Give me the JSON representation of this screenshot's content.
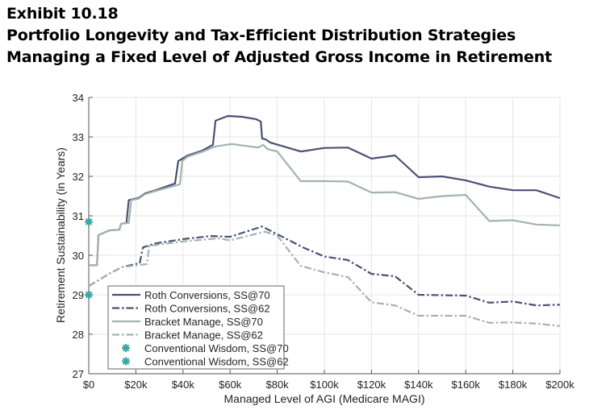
{
  "titles": {
    "exhibit": "Exhibit 10.18",
    "line1": "Portfolio Longevity and Tax-Efficient Distribution Strategies",
    "line2": "Managing a Fixed Level of Adjusted Gross Income in Retirement"
  },
  "chart_data": {
    "type": "line",
    "xlabel": "Managed Level of AGI (Medicare MAGI)",
    "ylabel": "Retirement Sustainability (in Years)",
    "xlim": [
      0,
      200
    ],
    "ylim": [
      27,
      34
    ],
    "x_units": "thousands of dollars",
    "x_ticks": [
      0,
      20,
      40,
      60,
      80,
      100,
      120,
      140,
      160,
      180,
      200
    ],
    "x_tick_labels": [
      "$0",
      "$20k",
      "$40k",
      "$60k",
      "$80k",
      "$100k",
      "$120k",
      "$140k",
      "$160k",
      "$180k",
      "$200k"
    ],
    "y_ticks": [
      27,
      28,
      29,
      30,
      31,
      32,
      33,
      34
    ],
    "y_tick_labels": [
      "27",
      "28",
      "29",
      "30",
      "31",
      "32",
      "33",
      "34"
    ],
    "grid": true,
    "legend_position": "bottom-left",
    "colors": {
      "dark": "#4a5173",
      "light": "#a3b3ad",
      "teal": "#3aa7a7"
    },
    "series": [
      {
        "name": "Roth Conversions, SS@70",
        "style": "solid",
        "color": "#4a5173",
        "points": [
          [
            0,
            29.75
          ],
          [
            3.5,
            29.75
          ],
          [
            4.1,
            30.51
          ],
          [
            8.6,
            30.63
          ],
          [
            13,
            30.65
          ],
          [
            13.7,
            30.8
          ],
          [
            16,
            30.82
          ],
          [
            17,
            31.4
          ],
          [
            21,
            31.45
          ],
          [
            24,
            31.57
          ],
          [
            28.4,
            31.65
          ],
          [
            36.6,
            31.82
          ],
          [
            38,
            32.39
          ],
          [
            42,
            32.53
          ],
          [
            48,
            32.65
          ],
          [
            52.7,
            32.8
          ],
          [
            53.8,
            33.41
          ],
          [
            59,
            33.53
          ],
          [
            65,
            33.51
          ],
          [
            71,
            33.45
          ],
          [
            73,
            33.39
          ],
          [
            73.6,
            32.96
          ],
          [
            75,
            32.94
          ],
          [
            77,
            32.86
          ],
          [
            90,
            32.63
          ],
          [
            100,
            32.72
          ],
          [
            110,
            32.73
          ],
          [
            120,
            32.45
          ],
          [
            130,
            32.53
          ],
          [
            140,
            31.98
          ],
          [
            150,
            32.0
          ],
          [
            160,
            31.9
          ],
          [
            170,
            31.74
          ],
          [
            180,
            31.65
          ],
          [
            190,
            31.65
          ],
          [
            200,
            31.45
          ]
        ]
      },
      {
        "name": "Roth Conversions, SS@62",
        "style": "dashdot",
        "color": "#4a5173",
        "points": [
          [
            0,
            29.22
          ],
          [
            8.6,
            29.53
          ],
          [
            14,
            29.7
          ],
          [
            21.6,
            29.8
          ],
          [
            23,
            30.2
          ],
          [
            28,
            30.3
          ],
          [
            40,
            30.41
          ],
          [
            52,
            30.49
          ],
          [
            60,
            30.47
          ],
          [
            73.6,
            30.73
          ],
          [
            91,
            30.2
          ],
          [
            100,
            29.97
          ],
          [
            110,
            29.88
          ],
          [
            120,
            29.53
          ],
          [
            130,
            29.47
          ],
          [
            140,
            29.0
          ],
          [
            160,
            28.98
          ],
          [
            170,
            28.8
          ],
          [
            180,
            28.83
          ],
          [
            190,
            28.73
          ],
          [
            200,
            28.75
          ]
        ]
      },
      {
        "name": "Bracket Manage, SS@70",
        "style": "solid",
        "color": "#a3b3ad",
        "points": [
          [
            0,
            29.75
          ],
          [
            3.5,
            29.75
          ],
          [
            4.1,
            30.51
          ],
          [
            8.6,
            30.63
          ],
          [
            13,
            30.65
          ],
          [
            13.7,
            30.8
          ],
          [
            17,
            30.82
          ],
          [
            18,
            31.4
          ],
          [
            21,
            31.43
          ],
          [
            24,
            31.55
          ],
          [
            28.4,
            31.63
          ],
          [
            38.7,
            31.8
          ],
          [
            39.7,
            32.39
          ],
          [
            42,
            32.5
          ],
          [
            48,
            32.62
          ],
          [
            53.8,
            32.76
          ],
          [
            60.6,
            32.82
          ],
          [
            72,
            32.73
          ],
          [
            74,
            32.8
          ],
          [
            76,
            32.69
          ],
          [
            80,
            32.63
          ],
          [
            90,
            31.88
          ],
          [
            100,
            31.88
          ],
          [
            110,
            31.87
          ],
          [
            120,
            31.59
          ],
          [
            130,
            31.6
          ],
          [
            140,
            31.43
          ],
          [
            150,
            31.5
          ],
          [
            160,
            31.53
          ],
          [
            170,
            30.87
          ],
          [
            180,
            30.89
          ],
          [
            190,
            30.78
          ],
          [
            200,
            30.76
          ]
        ]
      },
      {
        "name": "Bracket Manage, SS@62",
        "style": "dashdot",
        "color": "#a3b3ad",
        "points": [
          [
            0,
            29.22
          ],
          [
            8.6,
            29.53
          ],
          [
            14,
            29.7
          ],
          [
            24.7,
            29.78
          ],
          [
            25.7,
            30.24
          ],
          [
            40,
            30.35
          ],
          [
            55,
            30.43
          ],
          [
            60,
            30.38
          ],
          [
            74.7,
            30.6
          ],
          [
            80,
            30.5
          ],
          [
            90,
            29.73
          ],
          [
            100,
            29.57
          ],
          [
            110,
            29.45
          ],
          [
            120,
            28.81
          ],
          [
            130,
            28.73
          ],
          [
            140,
            28.47
          ],
          [
            160,
            28.47
          ],
          [
            170,
            28.29
          ],
          [
            180,
            28.3
          ],
          [
            190,
            28.27
          ],
          [
            200,
            28.21
          ]
        ]
      },
      {
        "name": "Conventional Wisdom, SS@70",
        "style": "marker",
        "color": "#3aa7a7",
        "points": [
          [
            0,
            30.85
          ]
        ]
      },
      {
        "name": "Conventional Wisdom, SS@62",
        "style": "marker",
        "color": "#3aa7a7",
        "points": [
          [
            0,
            29.0
          ]
        ]
      }
    ]
  }
}
